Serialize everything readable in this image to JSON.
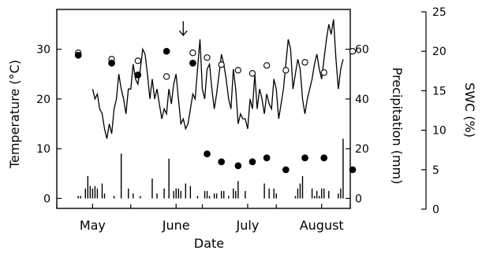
{
  "chart_data": {
    "type": "line",
    "xlabel": "Date",
    "x_ticks": [
      {
        "label": "May",
        "day": 15
      },
      {
        "label": "June",
        "day": 50
      },
      {
        "label": "July",
        "day": 80
      },
      {
        "label": "August",
        "day": 111
      }
    ],
    "x_range": [
      0,
      123
    ],
    "left_axis": {
      "label": "Temperature (°C)",
      "range": [
        -2,
        38
      ],
      "ticks": [
        0,
        10,
        20,
        30
      ]
    },
    "mid_axis": {
      "label": "Precipitation (mm)",
      "range": [
        -4,
        76
      ],
      "ticks": [
        0,
        20,
        40,
        60
      ]
    },
    "right_axis": {
      "label": "SWC (%)",
      "range": [
        0,
        25
      ],
      "ticks": [
        0,
        5,
        10,
        15,
        20,
        25
      ]
    },
    "annotation": {
      "type": "arrow",
      "day": 53,
      "description": "downward arrow marker"
    },
    "series": [
      {
        "kind": "line",
        "axis": "left",
        "x": [
          15,
          16,
          17,
          18,
          19,
          20,
          21,
          22,
          23,
          24,
          25,
          26,
          27,
          28,
          29,
          30,
          31,
          32,
          33,
          34,
          35,
          36,
          37,
          38,
          39,
          40,
          41,
          42,
          43,
          44,
          45,
          46,
          47,
          48,
          49,
          50,
          51,
          52,
          53,
          54,
          55,
          56,
          57,
          58,
          59,
          60,
          61,
          62,
          63,
          64,
          65,
          66,
          67,
          68,
          69,
          70,
          71,
          72,
          73,
          74,
          75,
          76,
          77,
          78,
          79,
          80,
          81,
          82,
          83,
          84,
          85,
          86,
          87,
          88,
          89,
          90,
          91,
          92,
          93,
          94,
          95,
          96,
          97,
          98,
          99,
          100,
          101,
          102,
          103,
          104,
          105,
          106,
          107,
          108,
          109,
          110,
          111,
          112,
          113,
          114,
          115,
          116,
          117,
          118,
          119,
          120
        ],
        "y": [
          22,
          20,
          21,
          18,
          17,
          14,
          12,
          15,
          13,
          18,
          20,
          25,
          22,
          20,
          17,
          22,
          22,
          27,
          24,
          23,
          26,
          30,
          29,
          25,
          20,
          24,
          20,
          22,
          19,
          16,
          18,
          17,
          22,
          19,
          23,
          25,
          20,
          15,
          16,
          14,
          15,
          18,
          21,
          20,
          26,
          32,
          22,
          20,
          26,
          27,
          22,
          18,
          21,
          25,
          29,
          27,
          24,
          20,
          18,
          26,
          22,
          15,
          17,
          16,
          16,
          14,
          20,
          18,
          25,
          18,
          22,
          20,
          17,
          21,
          19,
          18,
          24,
          22,
          16,
          19,
          22,
          27,
          32,
          30,
          22,
          25,
          28,
          26,
          20,
          17,
          20,
          22,
          24,
          27,
          29,
          26,
          24,
          28,
          32,
          35,
          33,
          36,
          28,
          22,
          26,
          28
        ],
        "color": "#000000"
      },
      {
        "kind": "scatter",
        "axis": "right",
        "style": "filled",
        "x": [
          9,
          23,
          34,
          46,
          57,
          63,
          69,
          76,
          82,
          88,
          96,
          104,
          112,
          124
        ],
        "y": [
          19.5,
          18.5,
          17.0,
          20.0,
          18.5,
          7.0,
          6.0,
          5.5,
          6.0,
          6.5,
          5.0,
          6.5,
          6.5,
          5.0
        ],
        "color": "#000000"
      },
      {
        "kind": "scatter",
        "axis": "right",
        "style": "open",
        "x": [
          9,
          23,
          34,
          46,
          57,
          63,
          69,
          76,
          82,
          88,
          96,
          104,
          112,
          124
        ],
        "y": [
          19.8,
          19.0,
          18.8,
          16.8,
          19.8,
          19.2,
          18.3,
          17.6,
          17.2,
          18.2,
          17.6,
          18.6,
          17.3,
          20.0
        ],
        "color": "#000000"
      },
      {
        "kind": "bar",
        "axis": "mid",
        "x": [
          9,
          10,
          12,
          13,
          14,
          15,
          16,
          17,
          19,
          20,
          24,
          27,
          30,
          32,
          35,
          40,
          42,
          45,
          47,
          49,
          50,
          51,
          52,
          54,
          56,
          59,
          62,
          63,
          64,
          66,
          67,
          69,
          70,
          72,
          74,
          75,
          76,
          79,
          87,
          89,
          91,
          92,
          100,
          101,
          102,
          103,
          107,
          108,
          109,
          110,
          111,
          112,
          114,
          118,
          119,
          120
        ],
        "y": [
          1,
          1,
          4,
          9,
          5,
          4,
          5,
          4,
          6,
          2,
          1,
          18,
          4,
          2,
          1,
          8,
          2,
          4,
          16,
          3,
          4,
          4,
          3,
          6,
          5,
          1,
          3,
          3,
          1,
          2,
          2,
          3,
          3,
          1,
          4,
          3,
          7,
          3,
          6,
          4,
          4,
          2,
          1,
          4,
          6,
          9,
          4,
          1,
          3,
          1,
          4,
          4,
          3,
          2,
          4,
          24
        ],
        "color": "#000000"
      }
    ]
  }
}
